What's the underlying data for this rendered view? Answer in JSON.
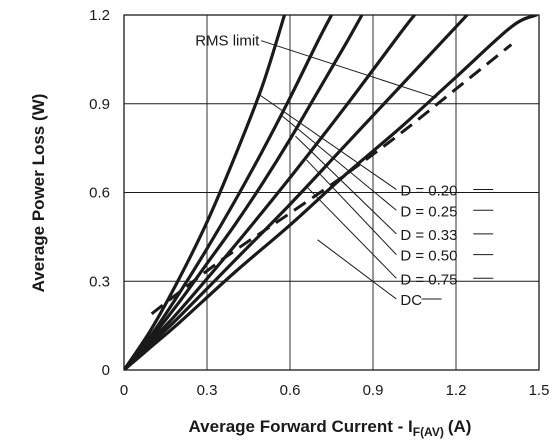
{
  "chart_data": {
    "type": "line",
    "xlabel": "Average Forward Current - I",
    "xlabel_sub": "F(AV)",
    "xlabel_unit": "(A)",
    "ylabel": "Average Power Loss (W)",
    "xlim": [
      0,
      1.5
    ],
    "ylim": [
      0,
      1.2
    ],
    "xticks": [
      "0",
      "0.3",
      "0.6",
      "0.9",
      "1.2",
      "1.5"
    ],
    "yticks": [
      "0",
      "0.3",
      "0.6",
      "0.9",
      "1.2"
    ],
    "grid": true,
    "series": [
      {
        "name": "D = 0.20",
        "style": "solid",
        "x": [
          0,
          0.1,
          0.2,
          0.3,
          0.4,
          0.5,
          0.58
        ],
        "y": [
          0,
          0.14,
          0.31,
          0.5,
          0.72,
          0.96,
          1.2
        ]
      },
      {
        "name": "D = 0.25",
        "style": "solid",
        "x": [
          0,
          0.1,
          0.2,
          0.3,
          0.4,
          0.5,
          0.6,
          0.7,
          0.75
        ],
        "y": [
          0,
          0.12,
          0.26,
          0.41,
          0.57,
          0.74,
          0.92,
          1.11,
          1.2
        ]
      },
      {
        "name": "D = 0.33",
        "style": "solid",
        "x": [
          0,
          0.1,
          0.2,
          0.3,
          0.4,
          0.5,
          0.6,
          0.7,
          0.8,
          0.86
        ],
        "y": [
          0,
          0.11,
          0.23,
          0.36,
          0.49,
          0.63,
          0.78,
          0.94,
          1.1,
          1.2
        ]
      },
      {
        "name": "D = 0.50",
        "style": "solid",
        "x": [
          0,
          0.1,
          0.2,
          0.4,
          0.6,
          0.8,
          1.0,
          1.05
        ],
        "y": [
          0,
          0.1,
          0.2,
          0.42,
          0.65,
          0.89,
          1.14,
          1.2
        ]
      },
      {
        "name": "D = 0.75",
        "style": "solid",
        "x": [
          0,
          0.1,
          0.2,
          0.4,
          0.6,
          0.8,
          1.0,
          1.2,
          1.24
        ],
        "y": [
          0,
          0.09,
          0.18,
          0.37,
          0.56,
          0.76,
          0.96,
          1.16,
          1.2
        ]
      },
      {
        "name": "DC",
        "style": "solid",
        "x": [
          0,
          0.1,
          0.2,
          0.4,
          0.6,
          0.8,
          1.0,
          1.2,
          1.4,
          1.49
        ],
        "y": [
          0,
          0.08,
          0.16,
          0.33,
          0.49,
          0.66,
          0.82,
          0.99,
          1.16,
          1.2
        ]
      },
      {
        "name": "RMS limit",
        "style": "dashed",
        "x": [
          0.1,
          0.35,
          0.6,
          0.8,
          1.0,
          1.2,
          1.4
        ],
        "y": [
          0.19,
          0.37,
          0.53,
          0.66,
          0.8,
          0.95,
          1.1
        ]
      }
    ],
    "annotations": [
      {
        "text": "RMS limit",
        "anchor_x": 0.12,
        "anchor_y": 1.12,
        "target_x": 1.13,
        "target_y": 0.92
      },
      {
        "text": "D = 0.20",
        "anchor_x": 0.97,
        "anchor_y": 0.61,
        "target_x": 0.49,
        "target_y": 0.93
      },
      {
        "text": "D = 0.25",
        "anchor_x": 0.97,
        "anchor_y": 0.54,
        "target_x": 0.57,
        "target_y": 0.86
      },
      {
        "text": "D = 0.33",
        "anchor_x": 0.97,
        "anchor_y": 0.46,
        "target_x": 0.62,
        "target_y": 0.79
      },
      {
        "text": "D = 0.50",
        "anchor_x": 0.97,
        "anchor_y": 0.39,
        "target_x": 0.66,
        "target_y": 0.71
      },
      {
        "text": "D = 0.75",
        "anchor_x": 0.97,
        "anchor_y": 0.31,
        "target_x": 0.66,
        "target_y": 0.62
      },
      {
        "text": "DC",
        "anchor_x": 0.97,
        "anchor_y": 0.24,
        "target_x": 0.7,
        "target_y": 0.44
      }
    ]
  }
}
